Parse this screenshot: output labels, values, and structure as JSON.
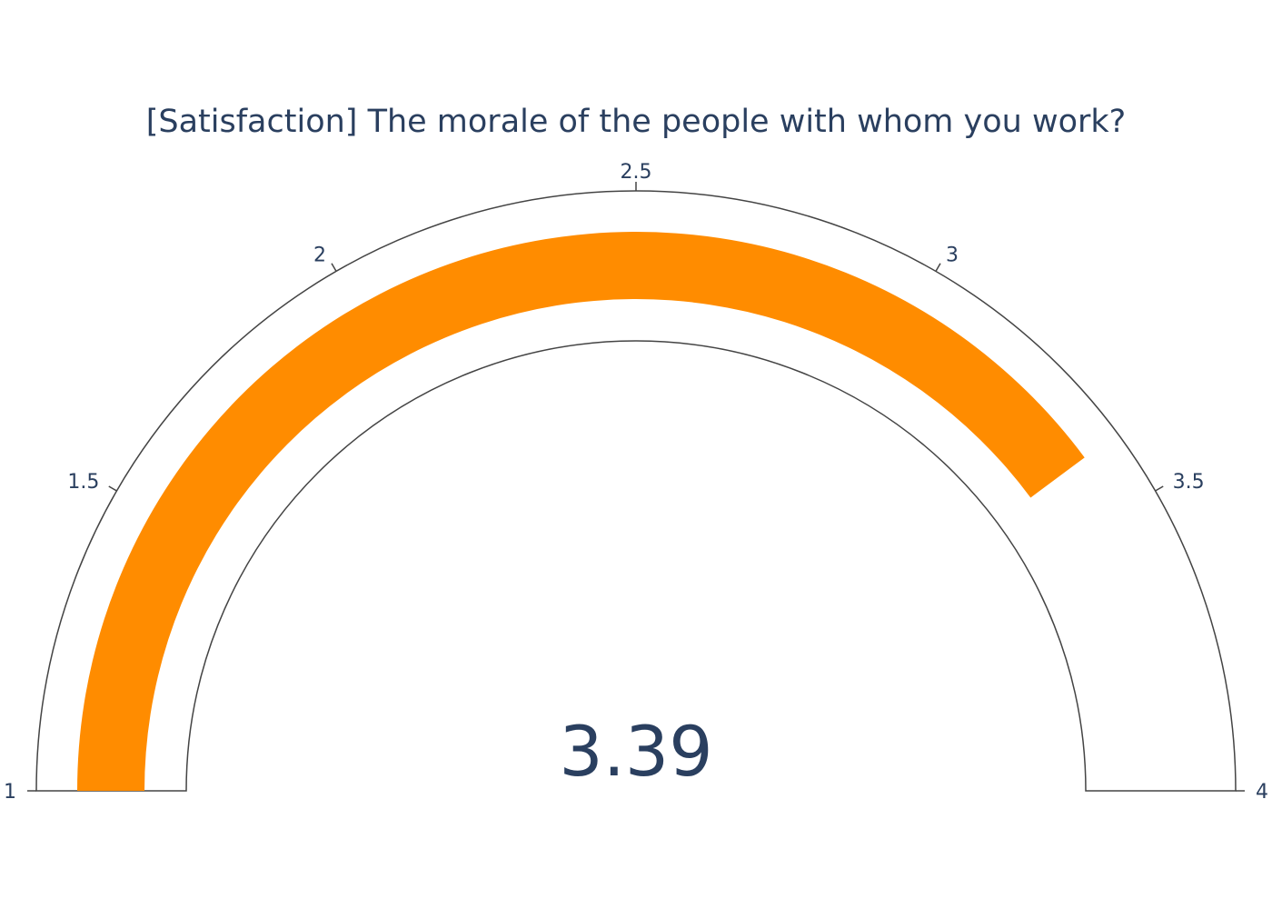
{
  "chart_data": {
    "type": "gauge",
    "title": "[Satisfaction] The morale of the people with whom you work?",
    "value": 3.39,
    "value_label": "3.39",
    "range": [
      1,
      4
    ],
    "ticks": [
      {
        "value": 1,
        "label": "1"
      },
      {
        "value": 1.5,
        "label": "1.5"
      },
      {
        "value": 2,
        "label": "2"
      },
      {
        "value": 2.5,
        "label": "2.5"
      },
      {
        "value": 3,
        "label": "3"
      },
      {
        "value": 3.5,
        "label": "3.5"
      },
      {
        "value": 4,
        "label": "4"
      }
    ],
    "bar_color": "#ff8c00",
    "outline_color": "#444444",
    "text_color": "#2a3f5f"
  }
}
